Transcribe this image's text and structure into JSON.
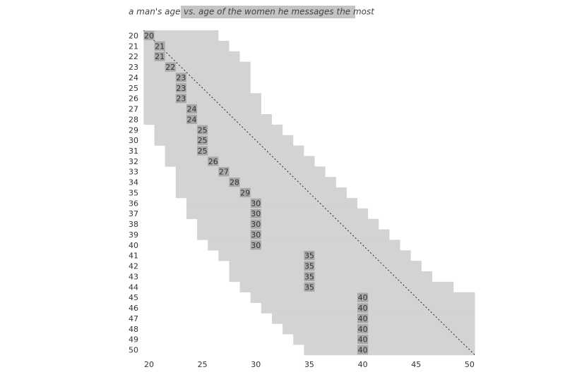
{
  "chart_data": {
    "type": "range",
    "title": "a man's age",
    "subtitle": "vs. age of the women he messages the most",
    "categories": [
      20,
      21,
      22,
      23,
      24,
      25,
      26,
      27,
      28,
      29,
      30,
      31,
      32,
      33,
      34,
      35,
      36,
      37,
      38,
      39,
      40,
      41,
      42,
      43,
      44,
      45,
      46,
      47,
      48,
      49,
      50
    ],
    "series": [
      {
        "color": "#d3d3d3",
        "values": [
          20,
          20,
          20,
          20,
          20,
          20,
          20,
          20,
          20,
          21,
          21,
          22,
          22,
          23,
          23,
          23,
          24,
          24,
          25,
          25,
          26,
          27,
          28,
          28,
          29,
          30,
          31,
          32,
          33,
          34,
          35
        ]
      },
      {
        "color": "#d3d3d3",
        "values": [
          26,
          27,
          28,
          29,
          29,
          29,
          30,
          30,
          31,
          32,
          33,
          34,
          35,
          36,
          37,
          38,
          39,
          40,
          41,
          42,
          43,
          44,
          45,
          46,
          48,
          50,
          50,
          50,
          50,
          50,
          50
        ]
      },
      {
        "color": "#a9a9a9",
        "values": [
          20,
          21,
          21,
          22,
          23,
          23,
          23,
          24,
          24,
          25,
          25,
          25,
          26,
          27,
          28,
          29,
          30,
          30,
          30,
          30,
          30,
          35,
          35,
          35,
          35,
          40,
          40,
          40,
          40,
          40,
          40
        ]
      }
    ],
    "xlim": [
      19.5,
      50.5
    ],
    "xticks": [
      20,
      25,
      30,
      35,
      40,
      45,
      50
    ],
    "diagonal": true
  }
}
